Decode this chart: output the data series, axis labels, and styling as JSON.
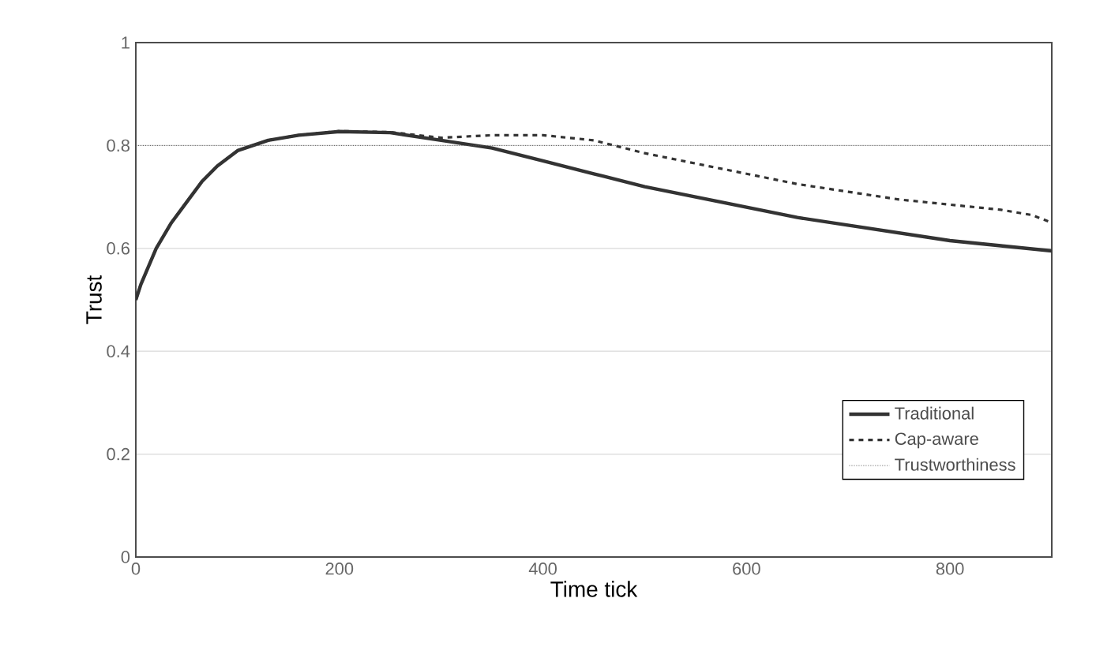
{
  "chart_data": {
    "type": "line",
    "xlabel": "Time tick",
    "ylabel": "Trust",
    "xlim": [
      0,
      900
    ],
    "xticks": [
      0,
      200,
      400,
      600,
      800
    ],
    "ylim": [
      0,
      1
    ],
    "yticks": [
      0,
      0.2,
      0.4,
      0.6,
      0.8,
      1
    ],
    "grid": "y",
    "legend": "bottom right",
    "series": [
      {
        "name": "Traditional",
        "color": "#333333",
        "line_style": "solid",
        "x": [
          0,
          5,
          20,
          35,
          50,
          65,
          80,
          100,
          130,
          160,
          200,
          250,
          300,
          350,
          400,
          450,
          500,
          550,
          600,
          650,
          700,
          750,
          800,
          850,
          900
        ],
        "values": [
          0.5,
          0.53,
          0.6,
          0.65,
          0.69,
          0.73,
          0.76,
          0.79,
          0.81,
          0.82,
          0.827,
          0.825,
          0.81,
          0.795,
          0.77,
          0.745,
          0.72,
          0.7,
          0.68,
          0.66,
          0.645,
          0.63,
          0.615,
          0.605,
          0.595
        ]
      },
      {
        "name": "Cap-aware",
        "color": "#333333",
        "line_style": "dashed",
        "x": [
          0,
          5,
          20,
          35,
          50,
          65,
          80,
          100,
          130,
          160,
          200,
          250,
          300,
          350,
          400,
          450,
          500,
          550,
          600,
          650,
          700,
          750,
          800,
          850,
          880,
          900
        ],
        "values": [
          0.5,
          0.53,
          0.6,
          0.65,
          0.69,
          0.73,
          0.76,
          0.79,
          0.81,
          0.82,
          0.828,
          0.826,
          0.815,
          0.82,
          0.82,
          0.81,
          0.785,
          0.765,
          0.745,
          0.725,
          0.71,
          0.695,
          0.685,
          0.675,
          0.665,
          0.65
        ]
      },
      {
        "name": "Trustworthiness",
        "color": "#555555",
        "line_style": "dotted",
        "x": [
          0,
          900
        ],
        "values": [
          0.8,
          0.8
        ]
      }
    ]
  }
}
